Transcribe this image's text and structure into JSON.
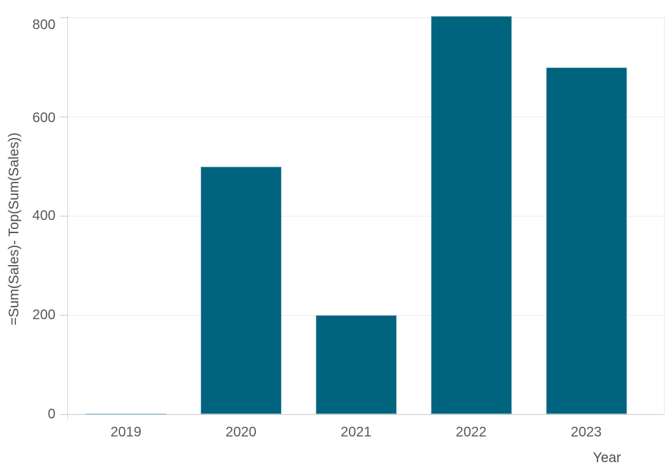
{
  "chart_data": {
    "type": "bar",
    "title": "",
    "categories": [
      "2019",
      "2020",
      "2021",
      "2022",
      "2023"
    ],
    "values": [
      2,
      500,
      200,
      803,
      700
    ],
    "xlabel": "Year",
    "ylabel": "=Sum(Sales)- Top(Sum(Sales))",
    "y_ticks": [
      0,
      200,
      400,
      600,
      800
    ],
    "ylim": [
      0,
      810
    ],
    "grid": "horizontal-only",
    "legend": "none",
    "bar_color": "#00647e",
    "bar_edge_color": "#a6c6d4",
    "tick_label_color": "#595959",
    "axis_title_color": "#4d4d4d"
  }
}
